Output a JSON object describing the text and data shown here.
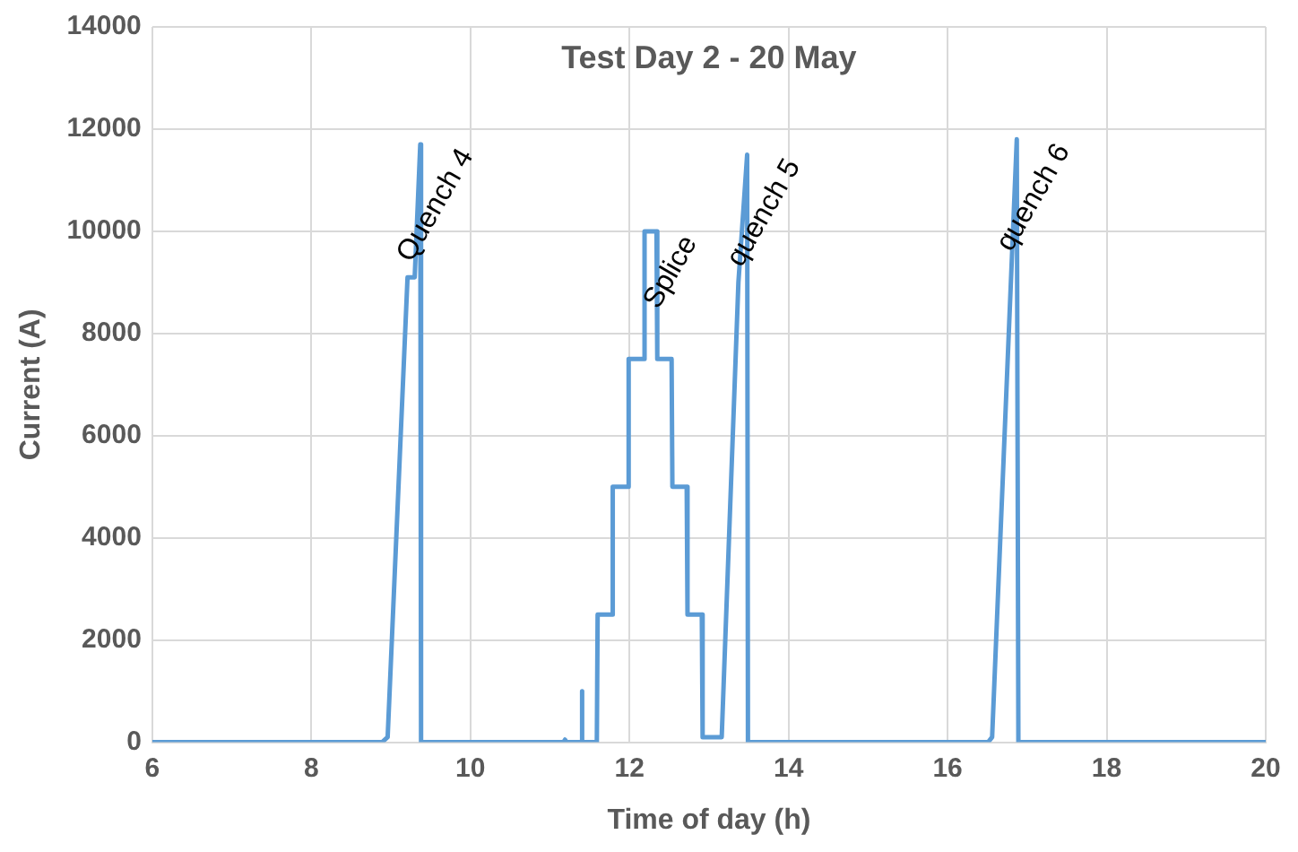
{
  "chart_data": {
    "type": "line",
    "title": "Test Day 2 - 20 May",
    "xlabel": "Time of day (h)",
    "ylabel": "Current (A)",
    "x": [
      6,
      8.89,
      8.96,
      9.21,
      9.3,
      9.37,
      9.38,
      11.17,
      11.19,
      11.21,
      11.39,
      11.4,
      11.41,
      11.59,
      11.6,
      11.78,
      11.79,
      11.98,
      11.99,
      12.18,
      12.19,
      12.34,
      12.35,
      12.53,
      12.54,
      12.72,
      12.73,
      12.91,
      12.92,
      13.16,
      13.37,
      13.48,
      13.49,
      16.51,
      16.56,
      16.87,
      16.89,
      20
    ],
    "series": [
      {
        "color": "#5b9bd5",
        "values": [
          0,
          0,
          100,
          9100,
          9100,
          11700,
          0,
          0,
          50,
          0,
          0,
          1000,
          0,
          0,
          2500,
          2500,
          5000,
          5000,
          7500,
          7500,
          10000,
          10000,
          7500,
          7500,
          5000,
          5000,
          2500,
          2500,
          100,
          100,
          9000,
          11500,
          0,
          0,
          100,
          11800,
          0,
          0
        ]
      }
    ],
    "xlim": [
      6,
      20
    ],
    "xticks": [
      6,
      8,
      10,
      12,
      14,
      16,
      18,
      20
    ],
    "ylim": [
      0,
      14000
    ],
    "yticks": [
      0,
      2000,
      4000,
      6000,
      8000,
      10000,
      12000,
      14000
    ],
    "grid": true,
    "legend": false,
    "marker": "none",
    "line_style": "solid",
    "annotations": [
      {
        "text": "Quench 4",
        "x": 9.37,
        "y": 11700
      },
      {
        "text": "Splice",
        "x": 12.18,
        "y": 10000
      },
      {
        "text": "quench 5",
        "x": 13.48,
        "y": 11500
      },
      {
        "text": "quench 6",
        "x": 16.87,
        "y": 11800
      }
    ]
  }
}
